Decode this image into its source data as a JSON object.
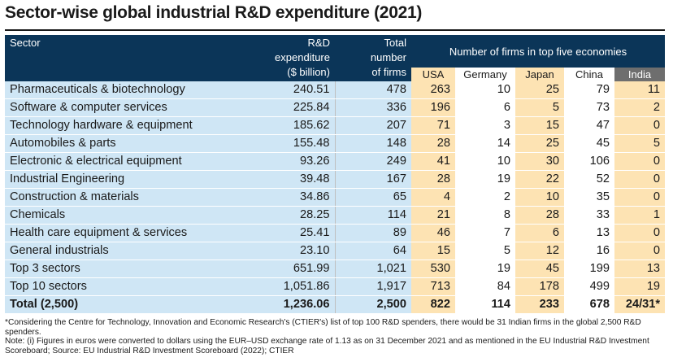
{
  "title": "Sector-wise global industrial R&D expenditure (2021)",
  "headers": {
    "sector": "Sector",
    "rd_line1": "R&D",
    "rd_line2": "expenditure",
    "rd_line3": "($ billion)",
    "firms_line1": "Total",
    "firms_line2": "number",
    "firms_line3": "of firms",
    "group": "Number of firms in top five economies",
    "countries": [
      "USA",
      "Germany",
      "Japan",
      "China",
      "India"
    ]
  },
  "rows": [
    {
      "sector": "Pharmaceuticals & biotechnology",
      "rd": "240.51",
      "firms": "478",
      "usa": "263",
      "germany": "10",
      "japan": "25",
      "china": "79",
      "india": "11"
    },
    {
      "sector": "Software & computer services",
      "rd": "225.84",
      "firms": "336",
      "usa": "196",
      "germany": "6",
      "japan": "5",
      "china": "73",
      "india": "2"
    },
    {
      "sector": "Technology hardware & equipment",
      "rd": "185.62",
      "firms": "207",
      "usa": "71",
      "germany": "3",
      "japan": "15",
      "china": "47",
      "india": "0"
    },
    {
      "sector": "Automobiles & parts",
      "rd": "155.48",
      "firms": "148",
      "usa": "28",
      "germany": "14",
      "japan": "25",
      "china": "45",
      "india": "5"
    },
    {
      "sector": "Electronic & electrical equipment",
      "rd": "93.26",
      "firms": "249",
      "usa": "41",
      "germany": "10",
      "japan": "30",
      "china": "106",
      "india": "0"
    },
    {
      "sector": "Industrial Engineering",
      "rd": "39.48",
      "firms": "167",
      "usa": "28",
      "germany": "19",
      "japan": "22",
      "china": "52",
      "india": "0"
    },
    {
      "sector": "Construction & materials",
      "rd": "34.86",
      "firms": "65",
      "usa": "4",
      "germany": "2",
      "japan": "10",
      "china": "35",
      "india": "0"
    },
    {
      "sector": "Chemicals",
      "rd": "28.25",
      "firms": "114",
      "usa": "21",
      "germany": "8",
      "japan": "28",
      "china": "33",
      "india": "1"
    },
    {
      "sector": "Health care equipment & services",
      "rd": "25.41",
      "firms": "89",
      "usa": "46",
      "germany": "7",
      "japan": "6",
      "china": "13",
      "india": "0"
    },
    {
      "sector": "General industrials",
      "rd": "23.10",
      "firms": "64",
      "usa": "15",
      "germany": "5",
      "japan": "12",
      "china": "16",
      "india": "0"
    },
    {
      "sector": "Top 3 sectors",
      "rd": "651.99",
      "firms": "1,021",
      "usa": "530",
      "germany": "19",
      "japan": "45",
      "china": "199",
      "india": "13"
    },
    {
      "sector": "Top 10 sectors",
      "rd": "1,051.86",
      "firms": "1,917",
      "usa": "713",
      "germany": "84",
      "japan": "178",
      "china": "499",
      "india": "19"
    }
  ],
  "total": {
    "sector": "Total (2,500)",
    "rd": "1,236.06",
    "firms": "2,500",
    "usa": "822",
    "germany": "114",
    "japan": "233",
    "china": "678",
    "india": "24/31*"
  },
  "notes": {
    "line1": "*Considering the Centre for Technology, Innovation and Economic Research's (CTIER's) list of top 100 R&D spenders, there would be 31 Indian firms in the global 2,500 R&D spenders.",
    "line2": "Note: (i) Figures in euros were converted to dollars using the EUR–USD exchange rate of 1.13 as on 31 December 2021 and as mentioned in the EU Industrial R&D Investment Scoreboard;  Source: EU Industrial R&D Investment Scoreboard (2022); CTIER"
  }
}
